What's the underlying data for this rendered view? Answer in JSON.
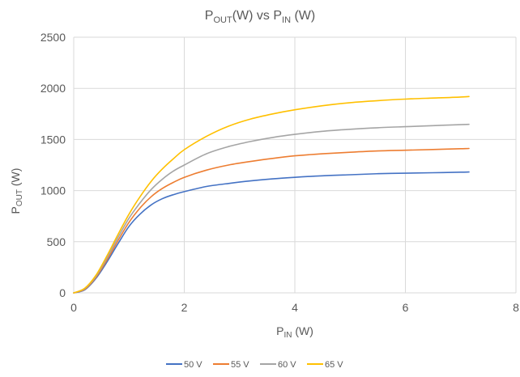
{
  "chart_data": {
    "type": "line",
    "title": {
      "main": "P",
      "sub1": "OUT",
      "mid": "(W) vs P",
      "sub2": "IN",
      "end": " (W)"
    },
    "xlabel": {
      "main": "P",
      "sub": "IN",
      "end": " (W)"
    },
    "ylabel": {
      "main": "P",
      "sub": "OUT",
      "end": " (W)"
    },
    "xlim": [
      0,
      8
    ],
    "ylim": [
      0,
      2500
    ],
    "x_ticks": [
      0,
      2,
      4,
      6,
      8
    ],
    "y_ticks": [
      0,
      500,
      1000,
      1500,
      2000,
      2500
    ],
    "x_tick_labels": [
      "0",
      "2",
      "4",
      "6",
      "8"
    ],
    "y_tick_labels": [
      "0",
      "500",
      "1000",
      "1500",
      "2000",
      "2500"
    ],
    "grid": true,
    "legend_position": "bottom",
    "x": [
      0,
      0.2,
      0.4,
      0.6,
      0.8,
      1.0,
      1.2,
      1.4,
      1.6,
      1.8,
      2.0,
      2.4,
      2.8,
      3.2,
      3.6,
      4.0,
      4.5,
      5.0,
      5.5,
      6.0,
      6.5,
      7.0,
      7.15
    ],
    "series": [
      {
        "name": "50 V",
        "color": "#4472C4",
        "values": [
          0,
          30,
          140,
          300,
          480,
          650,
          770,
          860,
          920,
          960,
          990,
          1040,
          1070,
          1095,
          1115,
          1130,
          1145,
          1155,
          1165,
          1170,
          1175,
          1180,
          1182
        ]
      },
      {
        "name": "55 V",
        "color": "#ED7D31",
        "values": [
          0,
          35,
          150,
          320,
          510,
          690,
          830,
          940,
          1020,
          1080,
          1130,
          1200,
          1250,
          1285,
          1315,
          1340,
          1360,
          1375,
          1388,
          1395,
          1402,
          1410,
          1412
        ]
      },
      {
        "name": "60 V",
        "color": "#A5A5A5",
        "values": [
          0,
          40,
          160,
          340,
          540,
          730,
          880,
          1010,
          1110,
          1190,
          1250,
          1360,
          1430,
          1480,
          1520,
          1550,
          1580,
          1600,
          1615,
          1625,
          1635,
          1645,
          1648
        ]
      },
      {
        "name": "65 V",
        "color": "#FFC000",
        "values": [
          0,
          45,
          170,
          360,
          570,
          770,
          940,
          1090,
          1210,
          1310,
          1400,
          1530,
          1630,
          1700,
          1750,
          1790,
          1830,
          1860,
          1880,
          1895,
          1905,
          1915,
          1920
        ]
      }
    ]
  }
}
